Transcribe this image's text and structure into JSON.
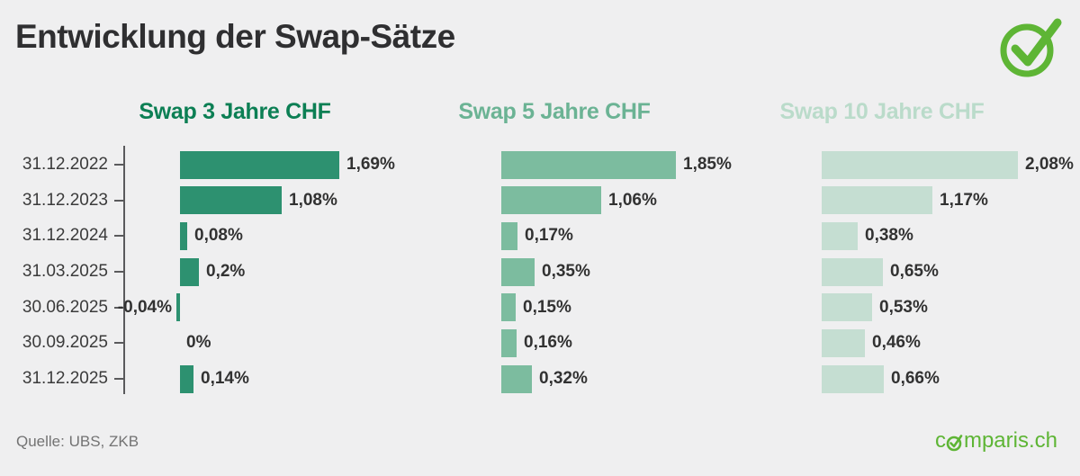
{
  "title": "Entwicklung der Swap-Sätze",
  "source": "Quelle: UBS, ZKB",
  "logo": {
    "text_pre": "c",
    "text_post": "mparis.ch",
    "brand_color": "#5eb535",
    "icon": "circle-check-icon"
  },
  "chart_data": {
    "type": "bar",
    "orientation": "horizontal",
    "title": "Entwicklung der Swap-Sätze",
    "categories": [
      "31.12.2022",
      "31.12.2023",
      "31.12.2024",
      "31.03.2025",
      "30.06.2025",
      "30.09.2025",
      "31.12.2025"
    ],
    "value_unit": "%",
    "xlim": [
      -0.1,
      2.3
    ],
    "grid": false,
    "legend_position": "column-titles-top",
    "series": [
      {
        "name": "Swap 3 Jahre CHF",
        "color": "#2d9170",
        "title_color": "#0c7f54",
        "values": [
          1.69,
          1.08,
          0.08,
          0.2,
          -0.04,
          0,
          0.14
        ],
        "labels": [
          "1,69%",
          "1,08%",
          "0,08%",
          "0,2%",
          "-0,04%",
          "0%",
          "0,14%"
        ]
      },
      {
        "name": "Swap 5 Jahre CHF",
        "color": "#7cbc9f",
        "title_color": "#6bb394",
        "values": [
          1.85,
          1.06,
          0.17,
          0.35,
          0.15,
          0.16,
          0.32
        ],
        "labels": [
          "1,85%",
          "1,06%",
          "0,17%",
          "0,35%",
          "0,15%",
          "0,16%",
          "0,32%"
        ]
      },
      {
        "name": "Swap 10 Jahre CHF",
        "color": "#c5ded2",
        "title_color": "#badbca",
        "values": [
          2.08,
          1.17,
          0.38,
          0.65,
          0.53,
          0.46,
          0.66
        ],
        "labels": [
          "2,08%",
          "1,17%",
          "0,38%",
          "0,65%",
          "0,53%",
          "0,46%",
          "0,66%"
        ]
      }
    ]
  }
}
